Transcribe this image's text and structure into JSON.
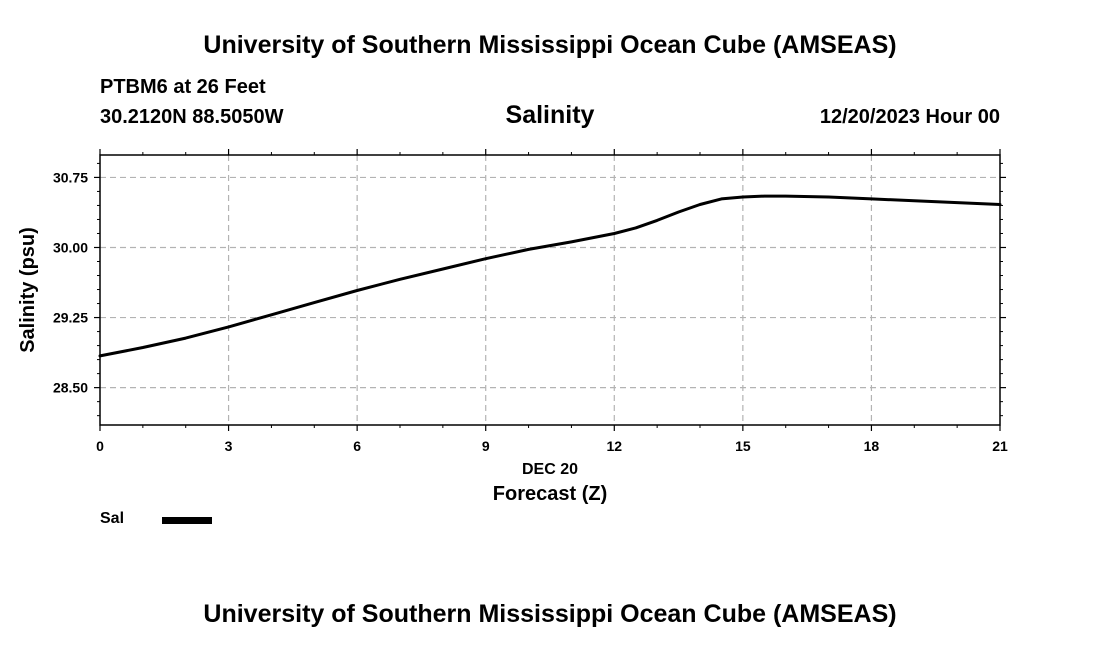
{
  "header": {
    "title": "University of Southern Mississippi Ocean Cube (AMSEAS)",
    "station": "PTBM6 at 26 Feet",
    "coordinates": "30.2120N  88.5050W",
    "timestamp": "12/20/2023 Hour 00"
  },
  "footer": {
    "title": "University of Southern Mississippi Ocean Cube (AMSEAS)"
  },
  "legend": {
    "label": "Sal",
    "color": "#000000"
  },
  "chart_data": {
    "type": "line",
    "title": "Salinity",
    "xlabel": "Forecast (Z)",
    "xdate_label": "DEC 20",
    "ylabel": "Salinity (psu)",
    "xlim": [
      0,
      21
    ],
    "ylim": [
      28.1,
      30.99
    ],
    "xticks": [
      0,
      3,
      6,
      9,
      12,
      15,
      18,
      21
    ],
    "yticks": [
      28.5,
      29.25,
      30.0,
      30.75
    ],
    "ytick_labels": [
      "28.50",
      "29.25",
      "30.00",
      "30.75"
    ],
    "grid": true,
    "series": [
      {
        "name": "Sal",
        "color": "#000000",
        "x": [
          0,
          1,
          2,
          3,
          4,
          5,
          6,
          7,
          8,
          9,
          10,
          11,
          12,
          12.5,
          13,
          13.5,
          14,
          14.5,
          15,
          15.5,
          16,
          17,
          18,
          19,
          20,
          21
        ],
        "y": [
          28.84,
          28.93,
          29.03,
          29.15,
          29.28,
          29.41,
          29.54,
          29.66,
          29.77,
          29.88,
          29.98,
          30.06,
          30.15,
          30.21,
          30.29,
          30.38,
          30.46,
          30.52,
          30.54,
          30.55,
          30.55,
          30.54,
          30.52,
          30.5,
          30.48,
          30.46
        ]
      }
    ]
  }
}
